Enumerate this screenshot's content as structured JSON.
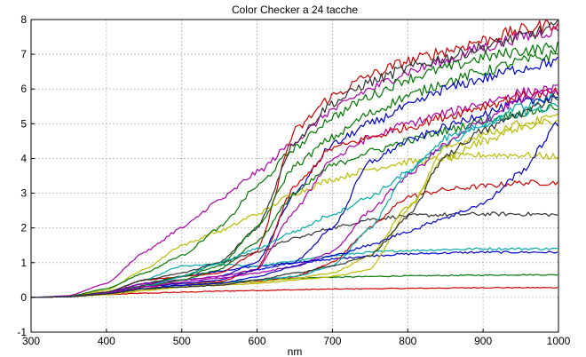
{
  "chart_data": {
    "type": "line",
    "title": "Color Checker a 24 tacche",
    "xlabel": "nm",
    "ylabel": "",
    "xlim": [
      300,
      1000
    ],
    "ylim": [
      -1,
      8
    ],
    "xticks": [
      300,
      400,
      500,
      600,
      700,
      800,
      900,
      1000
    ],
    "yticks": [
      -1,
      0,
      1,
      2,
      3,
      4,
      5,
      6,
      7,
      8
    ],
    "grid": true,
    "x": [
      300,
      350,
      400,
      450,
      500,
      550,
      600,
      650,
      700,
      750,
      800,
      850,
      900,
      950,
      1000
    ],
    "series": [
      {
        "color": "#cc0000",
        "values": [
          0,
          0.02,
          0.08,
          0.12,
          0.15,
          0.18,
          0.2,
          0.22,
          0.24,
          0.25,
          0.26,
          0.27,
          0.28,
          0.28,
          0.28
        ]
      },
      {
        "color": "#007700",
        "values": [
          0,
          0.02,
          0.12,
          0.25,
          0.35,
          0.42,
          0.5,
          0.55,
          0.58,
          0.6,
          0.62,
          0.63,
          0.64,
          0.65,
          0.65
        ]
      },
      {
        "color": "#0000cc",
        "values": [
          0,
          0.02,
          0.15,
          0.4,
          0.6,
          0.75,
          0.9,
          1.0,
          1.1,
          1.2,
          1.25,
          1.28,
          1.3,
          1.3,
          1.3
        ]
      },
      {
        "color": "#00aaaa",
        "values": [
          0,
          0.02,
          0.15,
          0.5,
          0.9,
          0.95,
          0.9,
          1.05,
          1.2,
          1.3,
          1.35,
          1.38,
          1.4,
          1.4,
          1.4
        ]
      },
      {
        "color": "#333333",
        "values": [
          0,
          0.02,
          0.12,
          0.35,
          0.6,
          1.0,
          1.3,
          1.7,
          2.0,
          2.25,
          2.35,
          2.38,
          2.4,
          2.4,
          2.38
        ]
      },
      {
        "color": "#cc0000",
        "values": [
          0,
          0.02,
          0.1,
          0.25,
          0.35,
          0.4,
          0.45,
          0.6,
          1.0,
          2.0,
          2.9,
          3.1,
          3.2,
          3.3,
          3.3
        ]
      },
      {
        "color": "#bbbb00",
        "values": [
          0,
          0.03,
          0.2,
          0.8,
          1.5,
          1.9,
          2.4,
          3.0,
          3.4,
          3.7,
          3.9,
          4.0,
          4.1,
          4.1,
          4.05
        ]
      },
      {
        "color": "#aa00aa",
        "values": [
          0,
          0.05,
          0.4,
          1.3,
          2.0,
          2.8,
          3.6,
          4.5,
          5.4,
          6.0,
          6.5,
          6.8,
          7.2,
          7.5,
          7.7
        ]
      },
      {
        "color": "#007700",
        "values": [
          0,
          0.03,
          0.25,
          0.7,
          1.2,
          2.0,
          3.2,
          4.3,
          5.2,
          5.8,
          6.3,
          6.6,
          6.9,
          7.1,
          7.2
        ]
      },
      {
        "color": "#cc0000",
        "values": [
          0,
          0.02,
          0.15,
          0.5,
          0.6,
          0.7,
          1.3,
          4.8,
          5.8,
          6.4,
          6.8,
          7.1,
          7.4,
          7.7,
          7.9
        ]
      },
      {
        "color": "#333333",
        "values": [
          0,
          0.02,
          0.15,
          0.5,
          0.7,
          1.0,
          2.0,
          4.5,
          5.6,
          6.2,
          6.6,
          6.9,
          7.2,
          7.5,
          7.8
        ]
      },
      {
        "color": "#007700",
        "values": [
          0,
          0.02,
          0.12,
          0.4,
          0.6,
          0.9,
          2.0,
          3.8,
          4.6,
          5.3,
          5.8,
          6.2,
          6.5,
          6.8,
          7.0
        ]
      },
      {
        "color": "#0000cc",
        "values": [
          0,
          0.02,
          0.12,
          0.4,
          0.5,
          0.6,
          1.0,
          3.0,
          4.4,
          5.0,
          5.5,
          6.0,
          6.3,
          6.6,
          6.8
        ]
      },
      {
        "color": "#aa00aa",
        "values": [
          0,
          0.02,
          0.12,
          0.4,
          0.5,
          0.6,
          0.8,
          2.5,
          4.0,
          4.6,
          5.0,
          5.3,
          5.6,
          5.9,
          6.0
        ]
      },
      {
        "color": "#cc0000",
        "values": [
          0,
          0.02,
          0.1,
          0.3,
          0.4,
          0.45,
          0.8,
          3.2,
          4.3,
          4.6,
          4.9,
          5.2,
          5.5,
          5.8,
          5.9
        ]
      },
      {
        "color": "#007700",
        "values": [
          0,
          0.02,
          0.1,
          0.3,
          0.5,
          0.8,
          1.6,
          3.0,
          3.8,
          4.2,
          4.5,
          4.8,
          5.1,
          5.3,
          5.5
        ]
      },
      {
        "color": "#00aaaa",
        "values": [
          0,
          0.02,
          0.1,
          0.3,
          0.6,
          1.0,
          1.4,
          1.9,
          2.4,
          2.9,
          3.6,
          4.4,
          5.0,
          5.5,
          5.8
        ]
      },
      {
        "color": "#0000cc",
        "values": [
          0,
          0.02,
          0.1,
          0.3,
          0.4,
          0.5,
          0.8,
          1.0,
          2.0,
          3.9,
          4.5,
          4.9,
          5.3,
          5.6,
          5.8
        ]
      },
      {
        "color": "#aa00aa",
        "values": [
          0,
          0.02,
          0.1,
          0.3,
          0.45,
          0.55,
          0.7,
          0.9,
          1.3,
          2.5,
          3.5,
          4.4,
          5.1,
          5.7,
          5.95
        ]
      },
      {
        "color": "#00aaaa",
        "values": [
          0,
          0.02,
          0.1,
          0.25,
          0.35,
          0.4,
          0.5,
          0.6,
          0.9,
          2.0,
          3.6,
          4.6,
          5.0,
          5.3,
          5.5
        ]
      },
      {
        "color": "#bbbb00",
        "values": [
          0,
          0.02,
          0.08,
          0.2,
          0.3,
          0.35,
          0.4,
          0.5,
          0.6,
          0.8,
          2.5,
          4.3,
          4.7,
          5.0,
          5.2
        ]
      },
      {
        "color": "#bbbb00",
        "values": [
          0,
          0.02,
          0.08,
          0.2,
          0.3,
          0.4,
          0.45,
          0.55,
          0.7,
          1.2,
          2.6,
          4.0,
          4.5,
          4.9,
          5.1
        ]
      },
      {
        "color": "#0000cc",
        "values": [
          0,
          0.02,
          0.1,
          0.25,
          0.35,
          0.4,
          0.6,
          0.9,
          1.2,
          1.5,
          1.9,
          2.3,
          2.7,
          3.6,
          5.0
        ]
      },
      {
        "color": "#333333",
        "values": [
          0,
          0.02,
          0.1,
          0.25,
          0.3,
          0.35,
          0.5,
          0.7,
          0.9,
          1.2,
          2.3,
          4.1,
          4.8,
          5.3,
          5.8
        ]
      }
    ]
  }
}
